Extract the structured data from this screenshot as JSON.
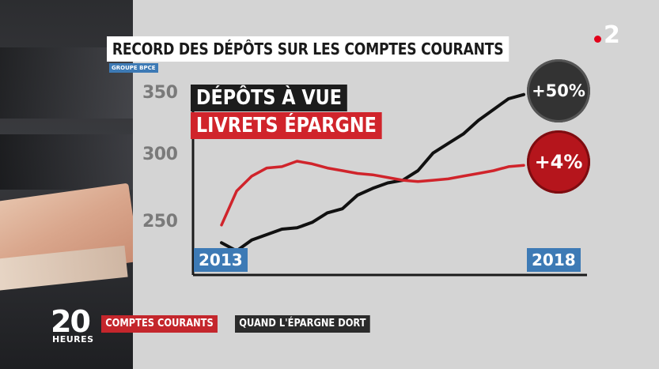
{
  "title": "RECORD DES DÉPÔTS SUR LES COMPTES COURANTS",
  "source": "GROUPE BPCE",
  "channel_logo": {
    "number": "2",
    "dot_color": "#e2001a"
  },
  "legend": [
    {
      "label": "DÉPÔTS À VUE",
      "color": "#1c1c1c"
    },
    {
      "label": "LIVRETS ÉPARGNE",
      "color": "#d0242b"
    }
  ],
  "badges": [
    {
      "label": "+50%",
      "series": "DÉPÔTS À VUE"
    },
    {
      "label": "+4%",
      "series": "LIVRETS ÉPARGNE"
    }
  ],
  "chart_data": {
    "type": "line",
    "title": "RECORD DES DÉPÔTS SUR LES COMPTES COURANTS",
    "x_start_label": "2013",
    "x_end_label": "2018",
    "y_ticks": [
      250,
      300,
      350
    ],
    "ylim": [
      230,
      360
    ],
    "x": [
      0,
      0.05,
      0.1,
      0.15,
      0.2,
      0.25,
      0.3,
      0.35,
      0.4,
      0.45,
      0.5,
      0.55,
      0.6,
      0.65,
      0.7,
      0.75,
      0.8,
      0.85,
      0.9,
      0.95,
      1.0
    ],
    "series": [
      {
        "name": "DÉPÔTS À VUE",
        "color": "#111111",
        "values": [
          240,
          234,
          242,
          246,
          250,
          251,
          255,
          262,
          265,
          275,
          280,
          284,
          286,
          293,
          306,
          313,
          320,
          330,
          338,
          346,
          349
        ]
      },
      {
        "name": "LIVRETS ÉPARGNE",
        "color": "#d0242b",
        "values": [
          253,
          278,
          289,
          295,
          296,
          300,
          298,
          295,
          293,
          291,
          290,
          288,
          286,
          285,
          286,
          287,
          289,
          291,
          293,
          296,
          297
        ]
      }
    ],
    "grid": false
  },
  "ticker": {
    "brand_number": "20",
    "brand_word": "HEURES",
    "tag_primary": "COMPTES COURANTS",
    "tag_secondary": "QUAND L'ÉPARGNE DORT"
  }
}
